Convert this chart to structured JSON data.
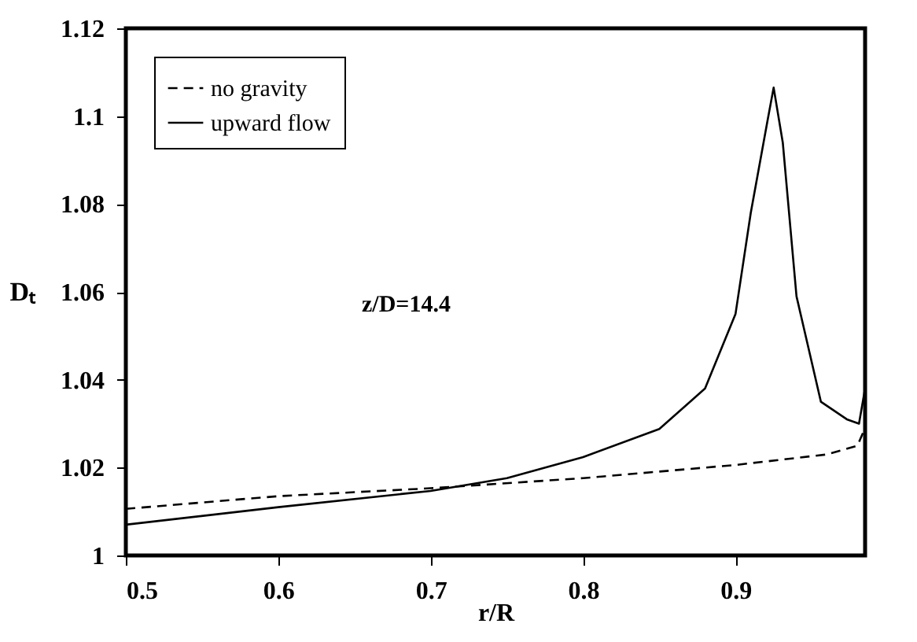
{
  "chart_data": {
    "type": "line",
    "xlabel": "r/R",
    "ylabel": "Dₜ",
    "xlim": [
      0.5,
      0.985
    ],
    "ylim": [
      1,
      1.12
    ],
    "xticks": [
      0.5,
      0.6,
      0.7,
      0.8,
      0.9
    ],
    "yticks": [
      1,
      1.02,
      1.04,
      1.06,
      1.08,
      1.1,
      1.12
    ],
    "grid": false,
    "legend": "top left",
    "marker": "none",
    "annotations": [
      "z/D=14.4"
    ],
    "series": [
      {
        "name": "no gravity",
        "color": "#000000",
        "line_style": "dashed",
        "x": [
          0.5,
          0.6,
          0.7,
          0.8,
          0.9,
          0.96,
          0.98,
          0.985
        ],
        "values": [
          1.0106,
          1.0135,
          1.0153,
          1.0176,
          1.0206,
          1.023,
          1.025,
          1.029
        ]
      },
      {
        "name": "upward flow",
        "color": "#000000",
        "line_style": "solid",
        "x": [
          0.5,
          0.6,
          0.7,
          0.75,
          0.8,
          0.85,
          0.88,
          0.9,
          0.91,
          0.921,
          0.925,
          0.931,
          0.94,
          0.956,
          0.973,
          0.981,
          0.985
        ],
        "values": [
          1.007,
          1.011,
          1.0147,
          1.0176,
          1.0224,
          1.0288,
          1.038,
          1.055,
          1.078,
          1.099,
          1.1065,
          1.094,
          1.059,
          1.035,
          1.031,
          1.03,
          1.038
        ]
      }
    ]
  }
}
